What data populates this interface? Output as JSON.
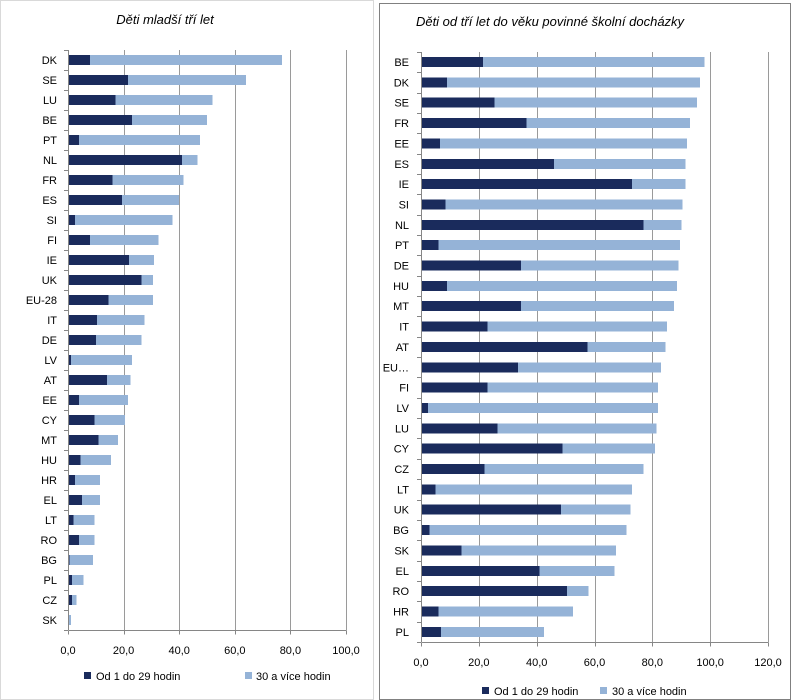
{
  "chart_data": [
    {
      "type": "bar",
      "stacked": true,
      "legend": "bottom",
      "grid": true,
      "title": "Děti mladší tří let",
      "categories": [
        "DK",
        "SE",
        "LU",
        "BE",
        "PT",
        "NL",
        "FR",
        "ES",
        "SI",
        "FI",
        "IE",
        "UK",
        "EU-28",
        "IT",
        "DE",
        "LV",
        "AT",
        "EE",
        "CY",
        "MT",
        "HU",
        "HR",
        "EL",
        "LT",
        "RO",
        "BG",
        "PL",
        "CZ",
        "SK"
      ],
      "series": [
        {
          "name": "Od 1 do 29 hodin",
          "color": "#1a2b5c",
          "values": [
            8,
            21.5,
            17,
            23,
            4,
            41,
            16,
            19.5,
            2.5,
            8,
            22,
            26.5,
            14.5,
            10.5,
            10,
            1,
            14,
            4,
            9.5,
            11,
            4.5,
            2.5,
            5,
            2,
            4,
            0.5,
            1.5,
            1.5,
            0
          ]
        },
        {
          "name": "30 a více hodin",
          "color": "#95b3d7",
          "values": [
            69,
            42.5,
            35,
            27,
            43.5,
            5.5,
            25.5,
            20.5,
            35,
            24.5,
            9,
            4,
            16,
            17,
            16.5,
            22,
            8.5,
            17.5,
            11,
            7,
            11,
            9,
            6.5,
            7.5,
            5.5,
            8.5,
            4,
            1.5,
            1
          ]
        }
      ],
      "xlim": [
        0,
        100
      ],
      "x_ticks": [
        0,
        20,
        40,
        60,
        80,
        100
      ],
      "x_tick_labels": [
        "0,0",
        "20,0",
        "40,0",
        "60,0",
        "80,0",
        "100,0"
      ]
    },
    {
      "type": "bar",
      "stacked": true,
      "legend": "bottom",
      "grid": true,
      "title": "Děti od tří let do věku povinné školní docházky",
      "categories": [
        "BE",
        "DK",
        "SE",
        "FR",
        "EE",
        "ES",
        "IE",
        "SI",
        "NL",
        "PT",
        "DE",
        "HU",
        "MT",
        "IT",
        "AT",
        "EU…",
        "FI",
        "LV",
        "LU",
        "CY",
        "CZ",
        "LT",
        "UK",
        "BG",
        "SK",
        "EL",
        "RO",
        "HR",
        "PL"
      ],
      "series": [
        {
          "name": "Od 1 do 29 hodin",
          "color": "#1a2b5c",
          "values": [
            21.5,
            9,
            25.5,
            36.5,
            6.5,
            46,
            73,
            8.5,
            77,
            6,
            34.5,
            9,
            34.5,
            23,
            57.5,
            33.5,
            23,
            2.5,
            26.5,
            49,
            22,
            5,
            48.5,
            3,
            14,
            41,
            50.5,
            6,
            7
          ]
        },
        {
          "name": "30 a více hodin",
          "color": "#95b3d7",
          "values": [
            76.5,
            87.5,
            70,
            56.5,
            85.5,
            45.5,
            18.5,
            82,
            13,
            83.5,
            54.5,
            79.5,
            53,
            62,
            27,
            49.5,
            59,
            79.5,
            55,
            32,
            55,
            68,
            24,
            68,
            53.5,
            26,
            7.5,
            46.5,
            35.5
          ]
        }
      ],
      "xlim": [
        0,
        120
      ],
      "x_ticks": [
        0,
        20,
        40,
        60,
        80,
        100,
        120
      ],
      "x_tick_labels": [
        "0,0",
        "20,0",
        "40,0",
        "60,0",
        "80,0",
        "100,0",
        "120,0"
      ]
    }
  ]
}
